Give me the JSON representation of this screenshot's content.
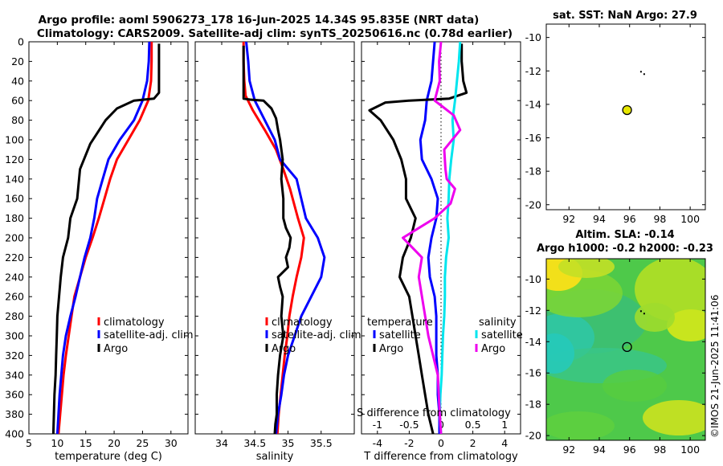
{
  "header": {
    "title_line1": "Argo profile: aoml 5906273_178 16-Jun-2025 14.34S 95.835E (NRT data)",
    "title_line2": "Climatology: CARS2009. Satellite-adj clim: synTS_20250616.nc (0.78d earlier)"
  },
  "side_label": "©IMOS 21-Jun-2025 11:41:06",
  "colors": {
    "climatology": "#ff0000",
    "satellite": "#0000ff",
    "argo": "#000000",
    "sat_salinity": "#00e5ee",
    "argo_salinity": "#ee00ee"
  },
  "chart_data": [
    {
      "id": "temperature",
      "type": "line",
      "xlabel": "temperature (deg C)",
      "ylabel": "",
      "xlim": [
        5,
        33
      ],
      "ylim": [
        0,
        400
      ],
      "xticks": [
        5,
        10,
        15,
        20,
        25,
        30
      ],
      "yticks": [
        0,
        20,
        40,
        60,
        80,
        100,
        120,
        140,
        160,
        180,
        200,
        220,
        240,
        260,
        280,
        300,
        320,
        340,
        360,
        380,
        400
      ],
      "legend": [
        "climatology",
        "satellite-adj. clim",
        "Argo"
      ],
      "legend_position": "lower-right",
      "series": [
        {
          "name": "climatology",
          "color": "#ff0000",
          "x": [
            26.6,
            26.6,
            26.5,
            26.0,
            24.5,
            22.5,
            20.5,
            19.3,
            18.3,
            17.3,
            16.2,
            15.0,
            14.0,
            13.0,
            12.5,
            12.0,
            11.5,
            11.1,
            10.8,
            10.5,
            10.2
          ],
          "y": [
            0,
            20,
            40,
            60,
            80,
            100,
            120,
            140,
            160,
            180,
            200,
            220,
            240,
            260,
            280,
            300,
            320,
            340,
            360,
            380,
            400
          ]
        },
        {
          "name": "satellite-adj. clim",
          "color": "#0000ff",
          "x": [
            26.2,
            26.1,
            25.8,
            25.0,
            23.5,
            21.0,
            19.0,
            18.0,
            17.0,
            16.5,
            15.8,
            14.8,
            14.0,
            13.2,
            12.3,
            11.5,
            11.0,
            10.7,
            10.4,
            10.2,
            10.0
          ],
          "y": [
            0,
            20,
            40,
            60,
            80,
            100,
            120,
            140,
            160,
            180,
            200,
            220,
            240,
            260,
            280,
            300,
            320,
            340,
            360,
            380,
            400
          ]
        },
        {
          "name": "Argo",
          "color": "#000000",
          "x": [
            27.9,
            27.9,
            27.9,
            27.9,
            27.0,
            23.5,
            20.5,
            18.5,
            15.8,
            14.0,
            13.5,
            12.3,
            11.9,
            11.0,
            10.6,
            10.3,
            10.0,
            9.9,
            9.8,
            9.7,
            9.5,
            9.4,
            9.3
          ],
          "y": [
            2,
            20,
            40,
            52,
            58,
            60,
            68,
            80,
            104,
            130,
            160,
            180,
            200,
            220,
            240,
            260,
            280,
            300,
            320,
            340,
            360,
            380,
            400
          ]
        }
      ]
    },
    {
      "id": "salinity",
      "type": "line",
      "xlabel": "salinity",
      "xlim": [
        33.6,
        36.0
      ],
      "ylim": [
        0,
        400
      ],
      "xticks": [
        34,
        34.5,
        35,
        35.5
      ],
      "legend": [
        "climatology",
        "satellite-adj. clim",
        "Argo"
      ],
      "legend_position": "lower-right",
      "series": [
        {
          "name": "climatology",
          "color": "#ff0000",
          "x": [
            34.33,
            34.33,
            34.34,
            34.36,
            34.47,
            34.65,
            34.82,
            34.93,
            35.03,
            35.15,
            35.24,
            35.2,
            35.13,
            35.07,
            35.02,
            34.99,
            34.95,
            34.92,
            34.89,
            34.86,
            34.84
          ],
          "y": [
            0,
            20,
            40,
            55,
            70,
            90,
            110,
            130,
            150,
            180,
            200,
            220,
            240,
            260,
            280,
            300,
            320,
            340,
            360,
            380,
            400
          ]
        },
        {
          "name": "satellite-adj. clim",
          "color": "#0000ff",
          "x": [
            34.37,
            34.4,
            34.42,
            34.5,
            34.65,
            34.8,
            34.88,
            35.13,
            35.2,
            35.27,
            35.45,
            35.55,
            35.5,
            35.35,
            35.2,
            35.1,
            35.0,
            34.94,
            34.9,
            34.85,
            34.82
          ],
          "y": [
            0,
            20,
            40,
            60,
            80,
            100,
            120,
            140,
            160,
            180,
            200,
            220,
            240,
            260,
            280,
            300,
            320,
            340,
            360,
            380,
            400
          ]
        },
        {
          "name": "Argo",
          "color": "#000000",
          "x": [
            34.33,
            34.33,
            34.33,
            34.33,
            34.33,
            34.43,
            34.63,
            34.75,
            34.82,
            34.85,
            34.88,
            34.92,
            34.9,
            34.93,
            34.93,
            34.97,
            35.04,
            35.02,
            34.97,
            35.0,
            34.85,
            34.88,
            34.92,
            34.9,
            34.93,
            34.88,
            34.85,
            34.83,
            34.83,
            34.81,
            34.8
          ],
          "y": [
            4,
            20,
            40,
            54,
            58,
            59,
            60,
            68,
            78,
            90,
            100,
            120,
            140,
            160,
            180,
            190,
            200,
            210,
            220,
            230,
            240,
            250,
            260,
            280,
            300,
            320,
            340,
            360,
            380,
            390,
            400
          ]
        }
      ]
    },
    {
      "id": "difference",
      "type": "line",
      "xlabel": "T difference from climatology",
      "top_xlabel": "S difference from climatology",
      "xlim": [
        -5,
        5
      ],
      "ylim": [
        0,
        400
      ],
      "xticks": [
        -4,
        -2,
        0,
        2,
        4
      ],
      "top_xticks": [
        -1,
        -0.5,
        0,
        0.5,
        1
      ],
      "zero_line": "dotted",
      "legend_titles": [
        "temperature",
        "salinity"
      ],
      "legend": [
        "satellite",
        "Argo",
        "satellite",
        "Argo"
      ],
      "series": [
        {
          "name": "T satellite",
          "color": "#0000ff",
          "x": [
            -0.4,
            -0.5,
            -0.6,
            -0.9,
            -1.0,
            -1.3,
            -1.2,
            -0.6,
            -0.2,
            -0.3,
            -0.6,
            -0.8,
            -0.7,
            -0.4,
            -0.3,
            -0.3,
            -0.3,
            -0.2,
            -0.2,
            -0.1,
            -0.1
          ],
          "y": [
            0,
            20,
            40,
            60,
            80,
            100,
            120,
            140,
            160,
            180,
            200,
            220,
            240,
            260,
            280,
            300,
            320,
            340,
            360,
            380,
            400
          ]
        },
        {
          "name": "T Argo",
          "color": "#000000",
          "x": [
            1.3,
            1.3,
            1.4,
            1.6,
            0.5,
            -2.0,
            -3.5,
            -4.5,
            -3.8,
            -3.0,
            -2.5,
            -2.2,
            -2.2,
            -1.6,
            -1.9,
            -2.4,
            -2.6,
            -2.0,
            -1.8,
            -1.6,
            -1.4,
            -1.2,
            -1.0,
            -0.8,
            -0.5
          ],
          "y": [
            2,
            20,
            40,
            52,
            58,
            60,
            62,
            70,
            80,
            100,
            120,
            140,
            160,
            180,
            200,
            220,
            240,
            260,
            280,
            300,
            320,
            340,
            360,
            380,
            400
          ]
        },
        {
          "name": "S satellite",
          "color": "#00e5ee",
          "x": [
            0.3,
            0.28,
            0.25,
            0.22,
            0.18,
            0.2,
            0.16,
            0.13,
            0.12,
            0.1,
            0.12,
            0.08,
            0.06,
            0.06,
            0.05,
            0.03,
            0.02,
            0.01,
            -0.01,
            -0.02,
            0.0
          ],
          "y": [
            0,
            20,
            40,
            60,
            80,
            100,
            120,
            140,
            160,
            180,
            200,
            220,
            240,
            260,
            280,
            300,
            320,
            340,
            360,
            380,
            400
          ]
        },
        {
          "name": "S Argo",
          "color": "#ee00ee",
          "x": [
            0.0,
            -0.03,
            -0.02,
            -0.1,
            0.02,
            0.2,
            0.3,
            0.05,
            0.07,
            0.09,
            0.22,
            0.15,
            -0.1,
            -0.35,
            -0.6,
            -0.3,
            -0.35,
            -0.2,
            -0.05,
            -0.02,
            0.0
          ],
          "y": [
            0,
            20,
            40,
            60,
            66,
            75,
            90,
            110,
            130,
            140,
            150,
            165,
            180,
            190,
            200,
            220,
            240,
            300,
            340,
            380,
            400
          ]
        }
      ]
    },
    {
      "id": "sst_map",
      "type": "scatter",
      "title": "sat. SST: NaN Argo: 27.9",
      "xlim": [
        90.5,
        101
      ],
      "ylim": [
        -20.3,
        -9.2
      ],
      "xticks": [
        92,
        94,
        96,
        98,
        100
      ],
      "yticks": [
        -10,
        -12,
        -14,
        -16,
        -18,
        -20
      ],
      "argo_position": {
        "lon": 95.835,
        "lat": -14.34
      }
    },
    {
      "id": "sla_map",
      "type": "heatmap",
      "title_line1": "Altim. SLA: -0.14",
      "title_line2": "Argo h1000: -0.2 h2000: -0.23",
      "xlim": [
        90.5,
        101
      ],
      "ylim": [
        -20.3,
        -8.7
      ],
      "xticks": [
        92,
        94,
        96,
        98,
        100
      ],
      "yticks": [
        -10,
        -12,
        -14,
        -16,
        -18,
        -20
      ],
      "argo_position": {
        "lon": 95.835,
        "lat": -14.34
      }
    }
  ]
}
